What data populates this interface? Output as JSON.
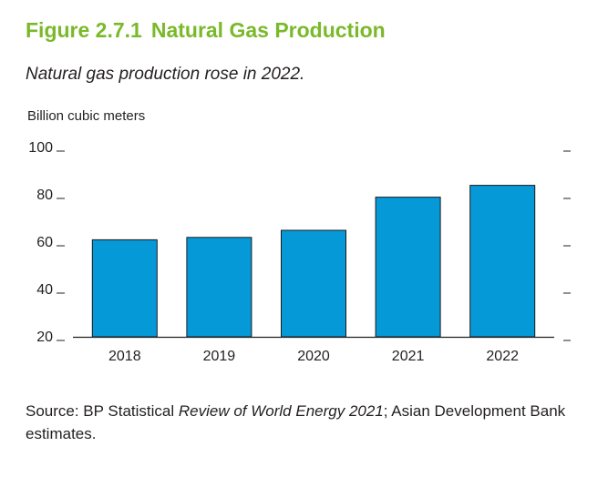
{
  "figure": {
    "number": "Figure 2.7.1",
    "title": "Natural Gas Production",
    "subtitle": "Natural gas production rose in 2022.",
    "unit_label": "Billion cubic meters",
    "source_prefix": "Source: BP Statistical ",
    "source_italic": "Review of World Energy 2021",
    "source_suffix": "; Asian Development Bank estimates."
  },
  "colors": {
    "title": "#7ab929",
    "bar": "#0599d8",
    "bar_stroke": "#1a1a1a",
    "text": "#231f20"
  },
  "chart_data": {
    "type": "bar",
    "categories": [
      "2018",
      "2019",
      "2020",
      "2021",
      "2022"
    ],
    "values": [
      61,
      62,
      65,
      79,
      84
    ],
    "ylabel": "Billion cubic meters",
    "ylim": [
      20,
      100
    ],
    "yticks": [
      "100",
      "80",
      "60",
      "40",
      "20"
    ],
    "grid": false
  }
}
